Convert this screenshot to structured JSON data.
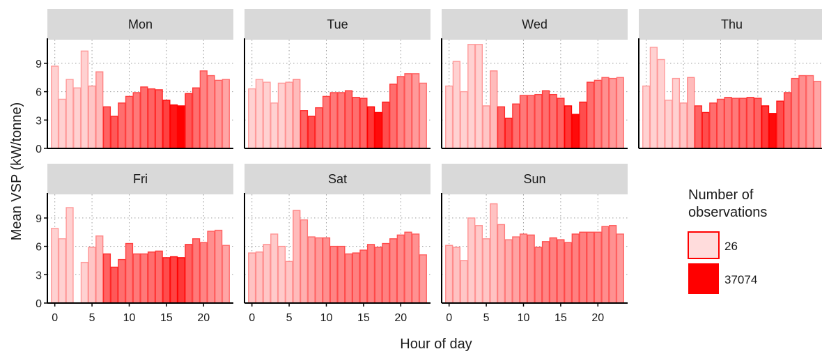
{
  "chart_data": {
    "type": "bar",
    "xlabel": "Hour of day",
    "ylabel": "Mean VSP (kW/tonne)",
    "xticks": [
      0,
      5,
      10,
      15,
      20
    ],
    "yticks": [
      0,
      3,
      6,
      9
    ],
    "ylim": [
      0,
      11.5
    ],
    "xlim": [
      -1,
      24
    ],
    "legend": {
      "title_lines": [
        "Number of",
        "observations"
      ],
      "min_label": "26",
      "max_label": "37074",
      "low_color": "#ffdcdc",
      "high_color": "#ff0000",
      "placement": "right"
    },
    "hours": [
      0,
      1,
      2,
      3,
      4,
      5,
      6,
      7,
      8,
      9,
      10,
      11,
      12,
      13,
      14,
      15,
      16,
      17,
      18,
      19,
      20,
      21,
      22,
      23
    ],
    "panels": [
      {
        "day": "Mon",
        "values": [
          8.7,
          5.2,
          7.3,
          6.4,
          10.3,
          6.6,
          8.1,
          4.4,
          3.4,
          4.8,
          5.5,
          5.9,
          6.5,
          6.3,
          6.2,
          5.1,
          4.6,
          4.5,
          5.8,
          6.4,
          8.2,
          7.7,
          7.2,
          7.3
        ],
        "intensity": [
          0.05,
          0.05,
          0.05,
          0.05,
          0.05,
          0.1,
          0.15,
          0.55,
          0.6,
          0.5,
          0.45,
          0.45,
          0.5,
          0.55,
          0.55,
          0.7,
          0.9,
          1.0,
          0.6,
          0.5,
          0.4,
          0.35,
          0.3,
          0.25
        ]
      },
      {
        "day": "Tue",
        "values": [
          6.3,
          7.3,
          7.0,
          4.8,
          6.9,
          7.0,
          7.3,
          4.0,
          3.4,
          4.3,
          5.5,
          5.9,
          5.9,
          6.1,
          5.4,
          5.3,
          4.4,
          3.8,
          4.9,
          6.8,
          7.6,
          7.9,
          7.9,
          6.9
        ],
        "intensity": [
          0.05,
          0.05,
          0.05,
          0.05,
          0.05,
          0.1,
          0.15,
          0.55,
          0.65,
          0.5,
          0.45,
          0.45,
          0.45,
          0.5,
          0.5,
          0.55,
          0.75,
          0.95,
          0.65,
          0.5,
          0.4,
          0.35,
          0.3,
          0.25
        ]
      },
      {
        "day": "Wed",
        "values": [
          6.6,
          9.2,
          6.0,
          11.0,
          11.0,
          4.5,
          8.2,
          4.4,
          3.2,
          4.7,
          5.6,
          5.6,
          5.7,
          6.1,
          5.7,
          5.3,
          4.5,
          3.6,
          4.9,
          7.0,
          7.2,
          7.5,
          7.4,
          7.5
        ],
        "intensity": [
          0.05,
          0.05,
          0.05,
          0.05,
          0.05,
          0.1,
          0.15,
          0.55,
          0.65,
          0.5,
          0.45,
          0.45,
          0.45,
          0.5,
          0.5,
          0.55,
          0.75,
          0.95,
          0.65,
          0.5,
          0.4,
          0.35,
          0.3,
          0.25
        ]
      },
      {
        "day": "Thu",
        "values": [
          6.6,
          10.7,
          9.4,
          5.1,
          7.4,
          4.8,
          7.5,
          4.5,
          3.8,
          4.8,
          5.2,
          5.4,
          5.3,
          5.3,
          5.4,
          5.3,
          4.5,
          3.7,
          5.0,
          5.9,
          7.4,
          7.7,
          7.7,
          7.1
        ],
        "intensity": [
          0.05,
          0.05,
          0.05,
          0.05,
          0.05,
          0.1,
          0.15,
          0.55,
          0.65,
          0.5,
          0.45,
          0.45,
          0.45,
          0.5,
          0.5,
          0.55,
          0.75,
          0.95,
          0.65,
          0.5,
          0.4,
          0.35,
          0.3,
          0.25
        ]
      },
      {
        "day": "Fri",
        "values": [
          7.9,
          6.8,
          10.1,
          null,
          4.3,
          5.9,
          7.1,
          5.2,
          3.8,
          4.6,
          6.3,
          5.2,
          5.2,
          5.4,
          5.5,
          4.8,
          4.9,
          4.8,
          6.2,
          6.8,
          6.4,
          7.6,
          7.7,
          6.1
        ],
        "intensity": [
          0.05,
          0.05,
          0.05,
          0.0,
          0.05,
          0.1,
          0.15,
          0.55,
          0.6,
          0.5,
          0.45,
          0.45,
          0.45,
          0.5,
          0.5,
          0.65,
          0.7,
          0.75,
          0.55,
          0.45,
          0.4,
          0.35,
          0.3,
          0.25
        ]
      },
      {
        "day": "Sat",
        "values": [
          5.3,
          5.4,
          6.2,
          7.3,
          6.0,
          4.4,
          9.8,
          8.8,
          7.0,
          6.9,
          6.9,
          6.0,
          6.0,
          5.2,
          5.3,
          5.6,
          6.2,
          5.9,
          6.3,
          6.8,
          7.2,
          7.5,
          7.3,
          5.1
        ],
        "intensity": [
          0.12,
          0.12,
          0.1,
          0.08,
          0.08,
          0.1,
          0.15,
          0.2,
          0.25,
          0.3,
          0.35,
          0.4,
          0.4,
          0.4,
          0.42,
          0.42,
          0.42,
          0.42,
          0.42,
          0.4,
          0.38,
          0.36,
          0.34,
          0.3
        ]
      },
      {
        "day": "Sun",
        "values": [
          6.1,
          5.9,
          4.5,
          9.0,
          8.2,
          6.8,
          10.5,
          8.3,
          6.7,
          7.0,
          7.3,
          7.2,
          5.9,
          6.5,
          6.9,
          6.7,
          6.4,
          7.3,
          7.5,
          7.5,
          7.5,
          8.1,
          8.2,
          7.3
        ],
        "intensity": [
          0.12,
          0.12,
          0.1,
          0.08,
          0.08,
          0.1,
          0.12,
          0.18,
          0.22,
          0.26,
          0.3,
          0.35,
          0.38,
          0.4,
          0.42,
          0.42,
          0.42,
          0.42,
          0.42,
          0.4,
          0.38,
          0.36,
          0.34,
          0.3
        ]
      }
    ]
  }
}
